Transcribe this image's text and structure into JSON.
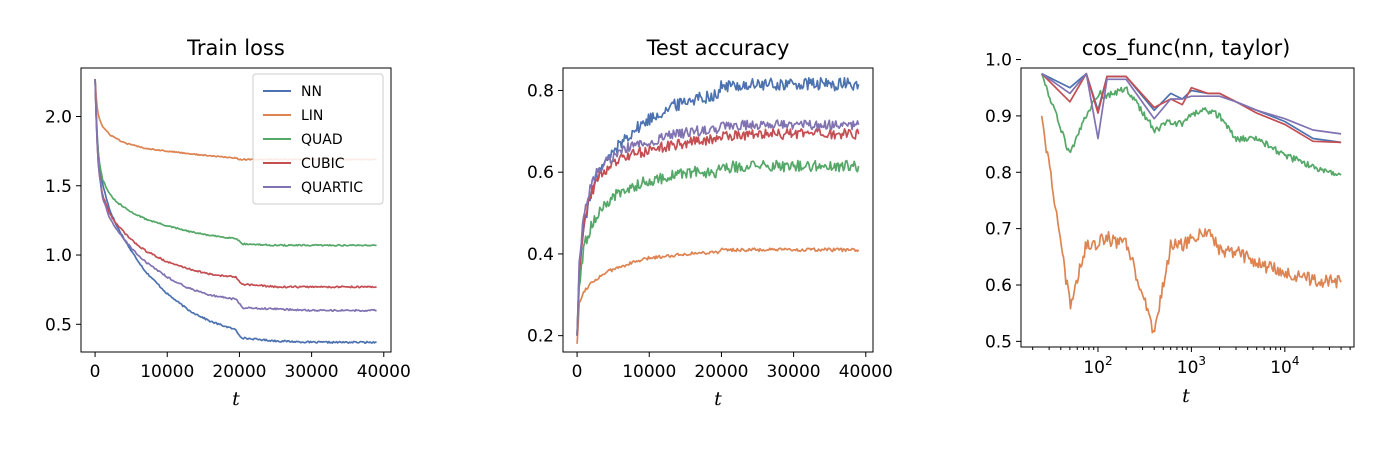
{
  "chart_data": [
    {
      "type": "line",
      "title": "Train loss",
      "xlabel": "t",
      "ylabel": "",
      "xscale": "linear",
      "xlim": [
        -1950,
        41000
      ],
      "ylim": [
        0.3,
        2.35
      ],
      "xticks": [
        0,
        10000,
        20000,
        30000,
        40000
      ],
      "xtick_labels": [
        "0",
        "10000",
        "20000",
        "30000",
        "40000"
      ],
      "yticks": [
        0.5,
        1.0,
        1.5,
        2.0
      ],
      "ytick_labels": [
        "0.5",
        "1.0",
        "1.5",
        "2.0"
      ],
      "legend": "top-right",
      "series": [
        {
          "name": "NN",
          "color": "#4c72b0",
          "noise": 0.006,
          "x": [
            0,
            200,
            500,
            1000,
            2000,
            3000,
            5000,
            7000,
            10000,
            13000,
            16000,
            19500,
            20000,
            20500,
            25000,
            30000,
            39000
          ],
          "y": [
            2.27,
            1.95,
            1.7,
            1.52,
            1.33,
            1.21,
            1.03,
            0.88,
            0.72,
            0.6,
            0.52,
            0.46,
            0.42,
            0.4,
            0.38,
            0.37,
            0.37
          ]
        },
        {
          "name": "LIN",
          "color": "#dd8452",
          "noise": 0.004,
          "x": [
            0,
            200,
            500,
            1000,
            2000,
            4000,
            7000,
            10000,
            15000,
            19500,
            20000,
            25000,
            30000,
            39000
          ],
          "y": [
            2.27,
            2.1,
            2.0,
            1.93,
            1.87,
            1.81,
            1.77,
            1.75,
            1.72,
            1.7,
            1.69,
            1.69,
            1.69,
            1.69
          ]
        },
        {
          "name": "QUAD",
          "color": "#55a868",
          "noise": 0.005,
          "x": [
            0,
            200,
            500,
            1000,
            2000,
            3000,
            5000,
            7000,
            10000,
            13000,
            16000,
            19500,
            20000,
            20500,
            25000,
            30000,
            39000
          ],
          "y": [
            2.27,
            1.92,
            1.7,
            1.55,
            1.44,
            1.38,
            1.31,
            1.26,
            1.21,
            1.17,
            1.14,
            1.12,
            1.1,
            1.08,
            1.07,
            1.07,
            1.07
          ]
        },
        {
          "name": "CUBIC",
          "color": "#c44e52",
          "noise": 0.006,
          "x": [
            0,
            200,
            500,
            1000,
            2000,
            3000,
            5000,
            7000,
            10000,
            13000,
            16000,
            19500,
            20000,
            20500,
            25000,
            30000,
            39000
          ],
          "y": [
            2.27,
            1.9,
            1.62,
            1.44,
            1.3,
            1.22,
            1.11,
            1.03,
            0.95,
            0.9,
            0.86,
            0.84,
            0.81,
            0.79,
            0.77,
            0.77,
            0.77
          ]
        },
        {
          "name": "QUARTIC",
          "color": "#8172b2",
          "noise": 0.006,
          "x": [
            0,
            200,
            500,
            1000,
            2000,
            3000,
            5000,
            7000,
            10000,
            13000,
            16000,
            19500,
            20000,
            20500,
            25000,
            30000,
            39000
          ],
          "y": [
            2.27,
            1.9,
            1.62,
            1.42,
            1.27,
            1.18,
            1.05,
            0.95,
            0.84,
            0.76,
            0.71,
            0.68,
            0.65,
            0.62,
            0.61,
            0.6,
            0.6
          ]
        }
      ]
    },
    {
      "type": "line",
      "title": "Test accuracy",
      "xlabel": "t",
      "ylabel": "",
      "xscale": "linear",
      "xlim": [
        -1950,
        41000
      ],
      "ylim": [
        0.16,
        0.855
      ],
      "xticks": [
        0,
        10000,
        20000,
        30000,
        40000
      ],
      "xtick_labels": [
        "0",
        "10000",
        "20000",
        "30000",
        "40000"
      ],
      "yticks": [
        0.2,
        0.4,
        0.6,
        0.8
      ],
      "ytick_labels": [
        "0.2",
        "0.4",
        "0.6",
        "0.8"
      ],
      "legend": "none",
      "series": [
        {
          "name": "NN",
          "color": "#4c72b0",
          "noise": 0.016,
          "x": [
            0,
            300,
            1000,
            2000,
            3000,
            5000,
            7000,
            10000,
            13000,
            16000,
            19500,
            20000,
            25000,
            30000,
            39000
          ],
          "y": [
            0.2,
            0.35,
            0.48,
            0.55,
            0.6,
            0.65,
            0.69,
            0.73,
            0.76,
            0.78,
            0.79,
            0.81,
            0.814,
            0.815,
            0.815
          ]
        },
        {
          "name": "LIN",
          "color": "#dd8452",
          "noise": 0.004,
          "x": [
            0,
            300,
            1000,
            2000,
            4000,
            7000,
            10000,
            15000,
            19500,
            20000,
            25000,
            30000,
            39000
          ],
          "y": [
            0.18,
            0.28,
            0.31,
            0.33,
            0.355,
            0.375,
            0.39,
            0.4,
            0.405,
            0.41,
            0.41,
            0.41,
            0.41
          ]
        },
        {
          "name": "QUAD",
          "color": "#55a868",
          "noise": 0.014,
          "x": [
            0,
            300,
            1000,
            2000,
            3000,
            5000,
            7000,
            10000,
            13000,
            16000,
            19500,
            20000,
            25000,
            30000,
            39000
          ],
          "y": [
            0.2,
            0.32,
            0.42,
            0.47,
            0.5,
            0.54,
            0.56,
            0.58,
            0.59,
            0.6,
            0.6,
            0.612,
            0.615,
            0.615,
            0.615
          ]
        },
        {
          "name": "CUBIC",
          "color": "#c44e52",
          "noise": 0.013,
          "x": [
            0,
            300,
            1000,
            2000,
            3000,
            5000,
            7000,
            10000,
            13000,
            16000,
            19500,
            20000,
            25000,
            30000,
            39000
          ],
          "y": [
            0.2,
            0.36,
            0.49,
            0.55,
            0.59,
            0.62,
            0.64,
            0.655,
            0.665,
            0.675,
            0.68,
            0.69,
            0.693,
            0.693,
            0.693
          ]
        },
        {
          "name": "QUARTIC",
          "color": "#8172b2",
          "noise": 0.012,
          "x": [
            0,
            300,
            1000,
            2000,
            3000,
            5000,
            7000,
            10000,
            13000,
            16000,
            19500,
            20000,
            25000,
            30000,
            39000
          ],
          "y": [
            0.2,
            0.38,
            0.51,
            0.57,
            0.61,
            0.64,
            0.66,
            0.675,
            0.69,
            0.7,
            0.705,
            0.713,
            0.716,
            0.716,
            0.716
          ]
        }
      ]
    },
    {
      "type": "line",
      "title": "cos_func(nn, taylor)",
      "xlabel": "t",
      "ylabel": "",
      "xscale": "log",
      "xlim": [
        15,
        55000
      ],
      "ylim": [
        0.49,
        0.985
      ],
      "xticks": [
        100,
        1000,
        10000
      ],
      "xtick_labels": [
        {
          "base": "10",
          "exp": "2"
        },
        {
          "base": "10",
          "exp": "3"
        },
        {
          "base": "10",
          "exp": "4"
        }
      ],
      "yticks": [
        0.5,
        0.6,
        0.7,
        0.8,
        0.9,
        1.0
      ],
      "ytick_labels": [
        "0.5",
        "0.6",
        "0.7",
        "0.8",
        "0.9",
        "1.0"
      ],
      "legend": "none",
      "series": [
        {
          "name": "NN",
          "color": "#4c72b0",
          "noise": 0.0,
          "x": [
            25,
            50,
            75,
            100,
            125,
            150,
            200,
            400,
            600,
            800,
            1000,
            1500,
            2000,
            3000,
            5000,
            10000,
            20000,
            40000
          ],
          "y": [
            0.975,
            0.95,
            0.975,
            0.91,
            0.97,
            0.97,
            0.97,
            0.91,
            0.94,
            0.93,
            0.945,
            0.94,
            0.94,
            0.925,
            0.91,
            0.89,
            0.86,
            0.853
          ]
        },
        {
          "name": "LIN",
          "color": "#dd8452",
          "noise": 0.012,
          "x": [
            25,
            50,
            75,
            100,
            125,
            150,
            200,
            400,
            600,
            800,
            1000,
            1500,
            2000,
            3000,
            5000,
            10000,
            20000,
            40000
          ],
          "y": [
            0.9,
            0.565,
            0.67,
            0.675,
            0.685,
            0.675,
            0.675,
            0.515,
            0.67,
            0.67,
            0.68,
            0.7,
            0.66,
            0.66,
            0.64,
            0.62,
            0.61,
            0.605
          ]
        },
        {
          "name": "QUAD",
          "color": "#55a868",
          "noise": 0.006,
          "x": [
            25,
            50,
            75,
            100,
            125,
            150,
            200,
            400,
            600,
            800,
            1000,
            1500,
            2000,
            3000,
            5000,
            10000,
            20000,
            40000
          ],
          "y": [
            0.975,
            0.83,
            0.9,
            0.94,
            0.935,
            0.94,
            0.95,
            0.875,
            0.89,
            0.885,
            0.905,
            0.91,
            0.9,
            0.86,
            0.86,
            0.83,
            0.81,
            0.795
          ]
        },
        {
          "name": "CUBIC",
          "color": "#c44e52",
          "noise": 0.0,
          "x": [
            25,
            50,
            75,
            100,
            125,
            150,
            200,
            400,
            600,
            800,
            1000,
            1500,
            2000,
            3000,
            5000,
            10000,
            20000,
            40000
          ],
          "y": [
            0.975,
            0.925,
            0.975,
            0.905,
            0.97,
            0.97,
            0.97,
            0.915,
            0.93,
            0.92,
            0.95,
            0.94,
            0.94,
            0.925,
            0.905,
            0.885,
            0.855,
            0.853
          ]
        },
        {
          "name": "QUARTIC",
          "color": "#8172b2",
          "noise": 0.0,
          "x": [
            25,
            50,
            75,
            100,
            125,
            150,
            200,
            400,
            600,
            800,
            1000,
            1500,
            2000,
            3000,
            5000,
            10000,
            20000,
            40000
          ],
          "y": [
            0.975,
            0.94,
            0.975,
            0.86,
            0.965,
            0.965,
            0.965,
            0.895,
            0.93,
            0.93,
            0.935,
            0.935,
            0.935,
            0.925,
            0.91,
            0.895,
            0.875,
            0.868
          ]
        }
      ]
    }
  ]
}
